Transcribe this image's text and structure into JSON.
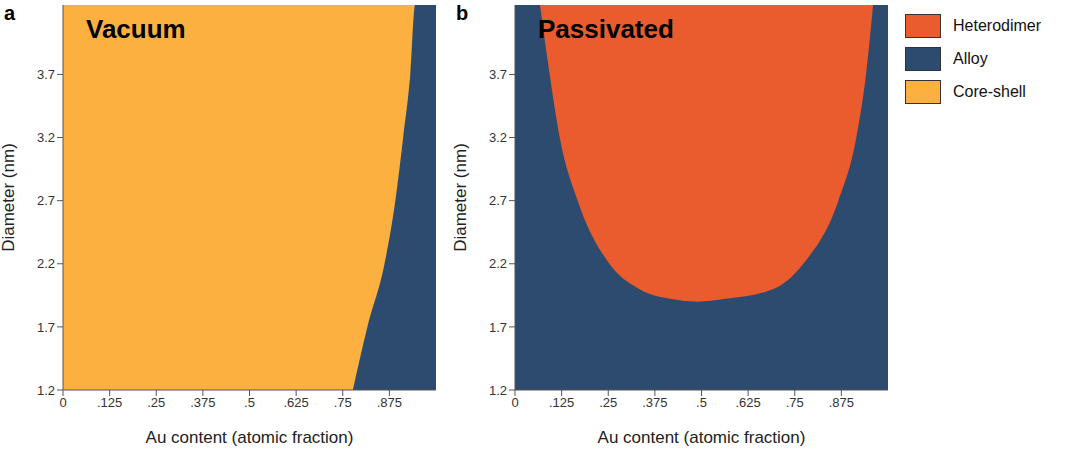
{
  "chart_data": [
    {
      "type": "area",
      "label": "a",
      "title": "Vacuum",
      "x_label": "Au content (atomic fraction)",
      "y_label": "Diameter (nm)",
      "xlim": [
        0,
        1
      ],
      "ylim": [
        1.2,
        4.25
      ],
      "xticks": [
        0,
        {
          "value": 0.125,
          "label": ".125"
        },
        {
          "value": 0.25,
          "label": ".25"
        },
        {
          "value": 0.375,
          "label": ".375"
        },
        {
          "value": 0.5,
          "label": ".5"
        },
        {
          "value": 0.625,
          "label": ".625"
        },
        {
          "value": 0.75,
          "label": ".75"
        },
        {
          "value": 0.875,
          "label": ".875"
        }
      ],
      "yticks": [
        1.2,
        1.7,
        2.2,
        2.7,
        3.2,
        3.7
      ],
      "series": [
        {
          "name": "Alloy",
          "color": "#2d4b6e",
          "x": [
            0.777,
            0.816,
            0.862,
            0.891,
            0.912,
            0.931,
            0.944,
            1.0
          ],
          "low": [
            1.2,
            1.2,
            1.2,
            1.2,
            1.2,
            1.2,
            1.2,
            1.2
          ],
          "high": [
            1.2,
            1.7,
            2.2,
            2.7,
            3.2,
            3.7,
            4.25,
            4.25
          ]
        },
        {
          "name": "Core-shell",
          "color": "#fbb040",
          "x": [
            0,
            1
          ],
          "low": [
            1.2,
            1.2
          ],
          "high": [
            4.25,
            4.25
          ]
        }
      ]
    },
    {
      "type": "area",
      "label": "b",
      "title": "Passivated",
      "x_label": "Au content (atomic fraction)",
      "y_label": "Diameter (nm)",
      "xlim": [
        0,
        1
      ],
      "ylim": [
        1.2,
        4.25
      ],
      "xticks": [
        0,
        {
          "value": 0.125,
          "label": ".125"
        },
        {
          "value": 0.25,
          "label": ".25"
        },
        {
          "value": 0.375,
          "label": ".375"
        },
        {
          "value": 0.5,
          "label": ".5"
        },
        {
          "value": 0.625,
          "label": ".625"
        },
        {
          "value": 0.75,
          "label": ".75"
        },
        {
          "value": 0.875,
          "label": ".875"
        }
      ],
      "yticks": [
        1.2,
        1.7,
        2.2,
        2.7,
        3.2,
        3.7
      ],
      "series": [
        {
          "name": "Heterodimer",
          "color": "#ea5b2d",
          "x": [
            0.067,
            0.093,
            0.12,
            0.168,
            0.253,
            0.333,
            0.42,
            0.49,
            0.56,
            0.693,
            0.773,
            0.867,
            0.915,
            0.941,
            0.96
          ],
          "low": [
            4.25,
            3.7,
            3.2,
            2.7,
            2.2,
            2.0,
            1.92,
            1.9,
            1.92,
            2.0,
            2.2,
            2.7,
            3.2,
            3.7,
            4.25
          ],
          "high": [
            4.25,
            4.25,
            4.25,
            4.25,
            4.25,
            4.25,
            4.25,
            4.25,
            4.25,
            4.25,
            4.25,
            4.25,
            4.25,
            4.25,
            4.25
          ]
        },
        {
          "name": "Alloy",
          "color": "#2d4b6e",
          "x": [
            0,
            1
          ],
          "low": [
            1.2,
            1.2
          ],
          "high": [
            4.25,
            4.25
          ]
        }
      ]
    }
  ]
}
